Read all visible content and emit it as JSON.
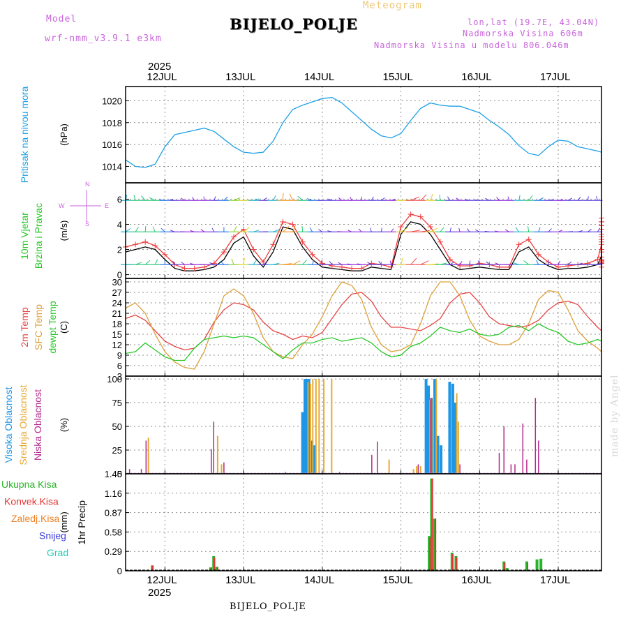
{
  "header": {
    "model_label": "Model",
    "model_name": "wrf-nmm_v3.9.1 e3km",
    "chart_type": "Meteogram",
    "station": "BIJELO_POLJE",
    "coords": "lon,lat (19.7E, 43.04N)",
    "altitude": "Nadmorska Visina 606m",
    "model_altitude": "Nadmorska Visina u modelu 806.046m",
    "year_top": "2025",
    "year_bottom": "2025",
    "footer_station": "BIJELO_POLJE",
    "watermark": "made by Angel"
  },
  "colors": {
    "pressure": "#1ea0e6",
    "wind_speed": "#000000",
    "gust": "#f03c3c",
    "temp2m": "#e64646",
    "sfc_temp": "#dca03c",
    "dewpt": "#28c828",
    "high_cloud": "#1e96e6",
    "mid_cloud": "#e6aa32",
    "low_cloud": "#b4288c",
    "total_rain": "#28b428",
    "conv_rain": "#e63232",
    "freezing_rain": "#f08228",
    "snow": "#3c3cdc",
    "hail": "#28c8b4",
    "purple_text": "#c864dc"
  },
  "chart_data": [
    {
      "type": "line",
      "panel": "pressure",
      "ylabel": "Pritisak na nivou mora",
      "unit": "(hPa)",
      "ylim": [
        1012.5,
        1021.3
      ],
      "yticks": [
        1014,
        1016,
        1018,
        1020
      ],
      "x_start_day": 11.5,
      "step_hours": 3,
      "series": [
        {
          "name": "Pritisak",
          "values": [
            1014.6,
            1014.0,
            1013.9,
            1014.2,
            1015.8,
            1016.9,
            1017.1,
            1017.3,
            1017.5,
            1017.2,
            1016.5,
            1015.8,
            1015.3,
            1015.2,
            1015.3,
            1016.3,
            1018.0,
            1019.2,
            1019.6,
            1019.9,
            1020.2,
            1020.3,
            1019.8,
            1019.0,
            1018.2,
            1017.4,
            1016.8,
            1016.6,
            1017.0,
            1018.2,
            1019.3,
            1019.8,
            1019.6,
            1019.5,
            1019.5,
            1019.2,
            1018.9,
            1018.2,
            1017.6,
            1016.9,
            1015.9,
            1015.2,
            1015.0,
            1015.8,
            1016.4,
            1016.3,
            1015.8,
            1015.6,
            1015.4,
            1015.3,
            1015.1,
            1015.2,
            1014.9,
            1014.6,
            1013.8,
            1013.0,
            1012.8,
            1013.2,
            1014.8,
            1015.6,
            1015.6,
            1015.8,
            1015.9,
            1015.6,
            1015.2,
            1014.4,
            1013.8,
            1013.2,
            1013.2,
            1014.3,
            1016.1,
            1016.5,
            1016.4,
            1016.1,
            1015.7,
            1015.2,
            1014.4,
            1013.2
          ]
        }
      ]
    },
    {
      "type": "line",
      "panel": "wind",
      "ylabel": [
        "10m Vjetar",
        "Brzina i Pravac"
      ],
      "unit": "(m/s)",
      "compass": {
        "n": "N",
        "e": "E",
        "w": "W",
        "s": "S"
      },
      "ylim": [
        -0.3,
        7.3
      ],
      "yticks": [
        0,
        2,
        4,
        6
      ],
      "x_start_day": 11.5,
      "step_hours": 3,
      "series": [
        {
          "name": "Brzina",
          "values": [
            1.8,
            2.0,
            2.2,
            2.0,
            1.2,
            0.5,
            0.3,
            0.3,
            0.4,
            0.6,
            1.2,
            2.5,
            3.0,
            1.5,
            0.6,
            1.8,
            3.8,
            3.6,
            2.2,
            1.2,
            0.6,
            0.5,
            0.4,
            0.3,
            0.3,
            0.6,
            0.5,
            0.4,
            3.2,
            4.2,
            4.0,
            3.2,
            2.0,
            0.8,
            0.4,
            0.5,
            0.6,
            0.5,
            0.4,
            0.4,
            1.8,
            2.2,
            1.2,
            0.7,
            0.4,
            0.5,
            0.5,
            0.6,
            0.8,
            1.5,
            1.2,
            0.8,
            0.4,
            0.6,
            2.2,
            3.0,
            3.6,
            3.4,
            2.6,
            1.6,
            0.6,
            0.6,
            0.7,
            0.8,
            0.6,
            1.5,
            2.4,
            3.4,
            3.8,
            3.5,
            2.0,
            1.0,
            0.6,
            0.7,
            0.8,
            0.8,
            0.7,
            0.9
          ]
        },
        {
          "name": "Udari",
          "values": [
            2.2,
            2.4,
            2.6,
            2.3,
            1.6,
            0.8,
            0.5,
            0.5,
            0.6,
            0.9,
            1.8,
            3.0,
            3.6,
            2.0,
            1.0,
            2.4,
            4.2,
            4.0,
            2.6,
            1.6,
            0.9,
            0.7,
            0.6,
            0.5,
            0.5,
            0.9,
            0.8,
            0.6,
            3.8,
            4.8,
            4.6,
            3.8,
            2.6,
            1.2,
            0.7,
            0.7,
            0.9,
            0.8,
            0.6,
            0.6,
            2.4,
            2.8,
            1.6,
            1.0,
            0.6,
            0.7,
            0.8,
            0.9,
            1.2,
            2.4,
            1.8,
            1.1,
            0.6,
            0.9,
            2.8,
            3.6,
            4.2,
            3.9,
            3.2,
            2.0,
            0.9,
            0.9,
            1.0,
            1.1,
            0.9,
            2.0,
            3.0,
            3.9,
            4.5,
            4.2,
            2.6,
            1.4,
            0.9,
            1.0,
            1.1,
            1.1,
            1.0,
            1.2
          ]
        }
      ]
    },
    {
      "type": "line",
      "panel": "temperature",
      "ylabel": [
        "2m Temp",
        "SFC Temp",
        "dewpt Temp"
      ],
      "unit": "(C)",
      "ylim": [
        3,
        31
      ],
      "yticks": [
        3,
        6,
        9,
        12,
        15,
        18,
        21,
        24,
        27,
        30
      ],
      "x_start_day": 11.5,
      "step_hours": 3,
      "series": [
        {
          "name": "2m Temp",
          "values": [
            19.5,
            20.5,
            19.0,
            16.0,
            13.0,
            11.5,
            10.5,
            11.0,
            13.5,
            18.5,
            22.0,
            24.0,
            23.5,
            22.0,
            18.5,
            16.0,
            15.0,
            13.5,
            14.5,
            14.0,
            15.5,
            19.5,
            23.5,
            26.5,
            27.0,
            24.5,
            20.0,
            17.0,
            17.0,
            16.5,
            16.0,
            17.5,
            19.5,
            24.0,
            26.5,
            27.0,
            24.0,
            20.0,
            18.0,
            17.5,
            17.0,
            17.5,
            19.0,
            22.0,
            24.0,
            24.5,
            23.5,
            20.0,
            17.0,
            16.0,
            15.0,
            14.5,
            16.0,
            20.0,
            24.0,
            26.0,
            26.5,
            25.0,
            21.0,
            18.5,
            17.5,
            17.0,
            17.0,
            18.5,
            21.5,
            25.5,
            27.0
          ]
        },
        {
          "name": "SFC Temp",
          "values": [
            22.5,
            24.0,
            21.0,
            15.0,
            10.0,
            7.0,
            5.5,
            5.0,
            10.0,
            18.0,
            26.0,
            28.0,
            26.0,
            21.0,
            14.0,
            10.0,
            8.5,
            8.0,
            12.0,
            15.0,
            20.0,
            26.0,
            30.0,
            29.0,
            25.0,
            17.0,
            12.0,
            10.0,
            10.5,
            12.0,
            18.0,
            26.0,
            30.0,
            30.0,
            26.0,
            19.0,
            14.5,
            13.0,
            12.0,
            12.0,
            13.5,
            18.0,
            25.0,
            27.5,
            27.0,
            22.0,
            16.0,
            13.0,
            11.0,
            10.0,
            11.5,
            18.0,
            26.0,
            29.5,
            30.0,
            26.0,
            19.0,
            13.5,
            11.0,
            10.5,
            13.0,
            21.0,
            27.5,
            30.0,
            31.0
          ]
        },
        {
          "name": "dewpt Temp",
          "values": [
            9.5,
            10.0,
            12.5,
            10.5,
            8.5,
            7.5,
            7.5,
            11.0,
            13.5,
            14.0,
            14.5,
            14.0,
            14.5,
            14.0,
            12.0,
            10.0,
            8.0,
            10.5,
            12.5,
            12.5,
            13.5,
            14.0,
            13.0,
            13.5,
            14.0,
            12.5,
            10.0,
            8.5,
            9.0,
            11.5,
            12.5,
            14.5,
            17.0,
            16.0,
            15.5,
            16.5,
            15.0,
            14.5,
            15.0,
            17.0,
            17.5,
            16.0,
            18.0,
            16.5,
            15.5,
            13.0,
            12.0,
            12.5,
            13.5,
            13.0,
            14.5,
            15.0,
            16.0,
            17.0,
            17.5,
            16.0,
            17.0,
            18.0,
            17.0,
            15.0,
            13.5,
            14.0,
            16.0,
            18.0,
            17.5,
            15.0
          ]
        }
      ]
    },
    {
      "type": "bar",
      "panel": "clouds",
      "ylabel": [
        "Visoka Oblacnost",
        "Srednja Oblacnost",
        "Niska Oblacnost"
      ],
      "unit": "(%)",
      "ylim": [
        0,
        103
      ],
      "yticks": [
        0,
        25,
        50,
        75,
        100
      ],
      "series": [
        {
          "name": "Visoka",
          "points": [
            [
              13.75,
              65
            ],
            [
              13.78,
              100
            ],
            [
              13.8,
              100
            ],
            [
              13.83,
              100
            ],
            [
              13.86,
              35
            ],
            [
              13.9,
              30
            ],
            [
              15.32,
              100
            ],
            [
              15.35,
              93
            ],
            [
              15.39,
              80
            ],
            [
              15.43,
              100
            ],
            [
              15.47,
              40
            ],
            [
              15.51,
              30
            ],
            [
              15.62,
              97
            ],
            [
              15.66,
              95
            ],
            [
              15.69,
              75
            ]
          ]
        },
        {
          "name": "Srednja",
          "points": [
            [
              11.79,
              38
            ],
            [
              12.67,
              40
            ],
            [
              12.72,
              10
            ],
            [
              13.82,
              97
            ],
            [
              13.85,
              95
            ],
            [
              13.88,
              100
            ],
            [
              13.92,
              100
            ],
            [
              13.96,
              100
            ],
            [
              14.02,
              100
            ],
            [
              14.12,
              100
            ],
            [
              14.85,
              15
            ],
            [
              15.16,
              5
            ],
            [
              15.2,
              8
            ],
            [
              15.25,
              8
            ],
            [
              15.37,
              78
            ],
            [
              15.41,
              80
            ],
            [
              15.45,
              100
            ],
            [
              15.71,
              85
            ],
            [
              15.73,
              55
            ]
          ]
        },
        {
          "name": "Niska",
          "points": [
            [
              11.55,
              5
            ],
            [
              11.7,
              5
            ],
            [
              11.76,
              35
            ],
            [
              12.59,
              26
            ],
            [
              12.62,
              55
            ],
            [
              12.75,
              12
            ],
            [
              13.53,
              2
            ],
            [
              14.22,
              2
            ],
            [
              14.63,
              20
            ],
            [
              14.7,
              34
            ],
            [
              15.22,
              10
            ],
            [
              15.38,
              80
            ],
            [
              15.75,
              10
            ],
            [
              16.25,
              22
            ],
            [
              16.31,
              50
            ],
            [
              16.4,
              10
            ],
            [
              16.45,
              10
            ],
            [
              16.55,
              53
            ],
            [
              16.6,
              15
            ],
            [
              16.71,
              80
            ],
            [
              16.75,
              35
            ]
          ]
        }
      ]
    },
    {
      "type": "bar",
      "panel": "precipitation",
      "ylabel": "1hr Precip",
      "unit": "(mm)",
      "legend": [
        "Ukupna Kisa",
        "Konvek.Kisa",
        "Zaledj.Kisa",
        "Snijeg",
        "Grad"
      ],
      "ylim": [
        0,
        1.45
      ],
      "yticks": [
        0,
        0.29,
        0.58,
        0.87,
        1.16,
        1.45
      ],
      "series": [
        {
          "name": "Ukupna Kisa",
          "points": [
            [
              11.84,
              0.08
            ],
            [
              12.58,
              0.05
            ],
            [
              12.62,
              0.22
            ],
            [
              12.66,
              0.06
            ],
            [
              15.36,
              0.52
            ],
            [
              15.39,
              1.38
            ],
            [
              15.43,
              0.78
            ],
            [
              15.65,
              0.27
            ],
            [
              15.7,
              0.22
            ],
            [
              16.31,
              0.14
            ],
            [
              16.35,
              0.04
            ],
            [
              16.6,
              0.14
            ],
            [
              16.73,
              0.17
            ],
            [
              16.78,
              0.18
            ]
          ]
        },
        {
          "name": "Konvek.Kisa",
          "points": [
            [
              11.84,
              0.08
            ],
            [
              12.59,
              0.05
            ],
            [
              12.63,
              0.2
            ],
            [
              12.67,
              0.05
            ],
            [
              15.37,
              0.5
            ],
            [
              15.4,
              1.38
            ],
            [
              15.44,
              0.78
            ],
            [
              15.66,
              0.25
            ],
            [
              15.71,
              0.2
            ],
            [
              16.32,
              0.12
            ],
            [
              16.61,
              0.12
            ]
          ]
        }
      ]
    }
  ],
  "xaxis": {
    "start_day": 11.5,
    "end_day": 17.55,
    "day_labels": [
      "12JUL",
      "13JUL",
      "14JUL",
      "15JUL",
      "16JUL",
      "17JUL"
    ],
    "day_positions": [
      12,
      13,
      14,
      15,
      16,
      17
    ]
  }
}
